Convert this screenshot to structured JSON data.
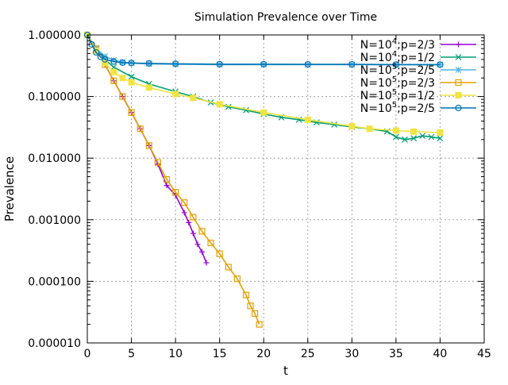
{
  "chart_data": {
    "type": "scatter",
    "title": "Simulation Prevalence over Time",
    "xlabel": "t",
    "ylabel": "Prevalence",
    "xlim": [
      0,
      45
    ],
    "ylim": [
      1e-05,
      1.0
    ],
    "yscale": "log",
    "grid": true,
    "legend_position": "top-right",
    "x_ticks": [
      0,
      5,
      10,
      15,
      20,
      25,
      30,
      35,
      40,
      45
    ],
    "x_tick_labels": [
      "0",
      "5",
      "10",
      "15",
      "20",
      "25",
      "30",
      "35",
      "40",
      "45"
    ],
    "y_ticks": [
      1e-05,
      0.0001,
      0.001,
      0.01,
      0.1,
      1.0
    ],
    "y_tick_labels": [
      "0.000010",
      "0.000100",
      "0.001000",
      "0.010000",
      "0.100000",
      "1.000000"
    ],
    "series": [
      {
        "name": "N=10⁴;p=2/3",
        "name_parts": [
          "N=10",
          "4",
          ";p=2/3"
        ],
        "color": "#9400d3",
        "marker": "plus",
        "x": [
          0,
          1,
          2,
          3,
          4,
          5,
          6,
          7,
          8,
          9,
          10,
          11,
          11.5,
          12,
          12.5,
          13,
          13.5
        ],
        "y": [
          1.0,
          0.6,
          0.33,
          0.18,
          0.1,
          0.055,
          0.03,
          0.016,
          0.008,
          0.0036,
          0.0025,
          0.0013,
          0.0009,
          0.0006,
          0.0004,
          0.0003,
          0.0002
        ]
      },
      {
        "name": "N=10⁴;p=1/2",
        "name_parts": [
          "N=10",
          "4",
          ";p=1/2"
        ],
        "color": "#009e73",
        "marker": "x",
        "x": [
          0,
          1,
          2,
          3,
          5,
          7,
          10,
          12,
          14,
          16,
          18,
          20,
          22,
          24,
          26,
          28,
          30,
          32,
          34,
          35,
          36,
          37,
          38,
          39,
          40
        ],
        "y": [
          1.0,
          0.6,
          0.4,
          0.3,
          0.21,
          0.16,
          0.12,
          0.1,
          0.08,
          0.068,
          0.06,
          0.052,
          0.046,
          0.042,
          0.038,
          0.035,
          0.032,
          0.03,
          0.027,
          0.022,
          0.02,
          0.021,
          0.023,
          0.022,
          0.021
        ]
      },
      {
        "name": "N=10⁵;p=2/5",
        "name_parts": [
          "N=10",
          "5",
          ";p=2/5"
        ],
        "color": "#56b4e9",
        "marker": "star",
        "x": [
          0,
          1,
          2,
          3,
          4,
          5,
          7,
          10,
          15,
          20,
          25,
          30,
          35,
          40
        ],
        "y": [
          1.0,
          0.6,
          0.45,
          0.39,
          0.36,
          0.35,
          0.34,
          0.335,
          0.33,
          0.33,
          0.33,
          0.33,
          0.33,
          0.33
        ]
      },
      {
        "name": "N=10⁵;p=2/3",
        "name_parts": [
          "N=10",
          "5",
          ";p=2/3"
        ],
        "color": "#e69f00",
        "marker": "open-square",
        "x": [
          0,
          1,
          2,
          3,
          4,
          5,
          6,
          7,
          8,
          9,
          10,
          11,
          12,
          13,
          14,
          15,
          16,
          17,
          18,
          18.5,
          19,
          19.5
        ],
        "y": [
          1.0,
          0.6,
          0.33,
          0.18,
          0.1,
          0.055,
          0.03,
          0.016,
          0.0085,
          0.0045,
          0.0028,
          0.0019,
          0.0011,
          0.00065,
          0.00042,
          0.00028,
          0.00017,
          0.00011,
          6e-05,
          4e-05,
          3e-05,
          2e-05
        ]
      },
      {
        "name": "N=10⁵;p=1/2",
        "name_parts": [
          "N=10",
          "5",
          ";p=1/2"
        ],
        "color": "#f0e442",
        "marker": "filled-square",
        "x": [
          0,
          1,
          2,
          3,
          4,
          5,
          7,
          10,
          12,
          15,
          20,
          25,
          30,
          32,
          35,
          37,
          40
        ],
        "y": [
          1.0,
          0.55,
          0.35,
          0.25,
          0.2,
          0.17,
          0.14,
          0.11,
          0.095,
          0.075,
          0.055,
          0.042,
          0.033,
          0.03,
          0.028,
          0.027,
          0.026
        ]
      },
      {
        "name": "N=10⁵;p=2/5",
        "name_parts": [
          "N=10",
          "5",
          ";p=2/5"
        ],
        "color": "#0072b2",
        "marker": "open-circle",
        "x": [
          0,
          0.5,
          1,
          1.5,
          2,
          3,
          4,
          5,
          7,
          10,
          15,
          20,
          25,
          30,
          35,
          40
        ],
        "y": [
          1.0,
          0.7,
          0.52,
          0.44,
          0.4,
          0.37,
          0.355,
          0.35,
          0.345,
          0.34,
          0.335,
          0.335,
          0.333,
          0.333,
          0.33,
          0.33
        ]
      }
    ]
  }
}
